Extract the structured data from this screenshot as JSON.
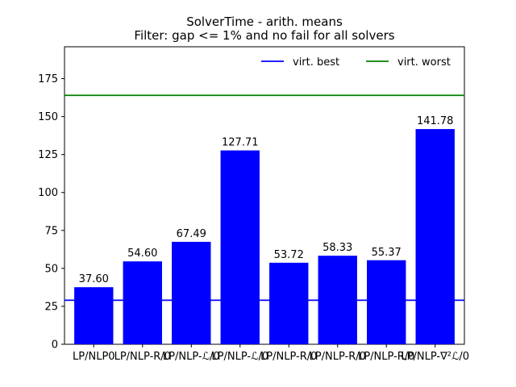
{
  "chart_data": {
    "type": "bar",
    "title": "SolverTime - arith. means",
    "subtitle": "Filter: gap <= 1% and no fail for all solvers",
    "xlabel": "",
    "ylabel": "",
    "categories": [
      "LP/NLP0",
      "LP/NLP-R/0",
      "LP/NLP-ℒ/0",
      "LP/NLP-ℒ/0",
      "LP/NLP-R/0",
      "LP/NLP-R/0",
      "LP/NLP-R/0",
      "LP/NLP-∇²ℒ/0"
    ],
    "values": [
      37.6,
      54.6,
      67.49,
      127.71,
      53.72,
      58.33,
      55.37,
      141.78
    ],
    "data_labels": [
      "37.60",
      "54.60",
      "67.49",
      "127.71",
      "53.72",
      "58.33",
      "55.37",
      "141.78"
    ],
    "bar_color": "#0000ff",
    "ylim": [
      0,
      196
    ],
    "yticks": [
      0,
      25,
      50,
      75,
      100,
      125,
      150,
      175
    ],
    "reference_lines": [
      {
        "name": "virt. best",
        "value": 29,
        "color": "#0000ff"
      },
      {
        "name": "virt. worst",
        "value": 164,
        "color": "#008000"
      }
    ],
    "legend": {
      "position": "top-right"
    },
    "grid": false
  }
}
